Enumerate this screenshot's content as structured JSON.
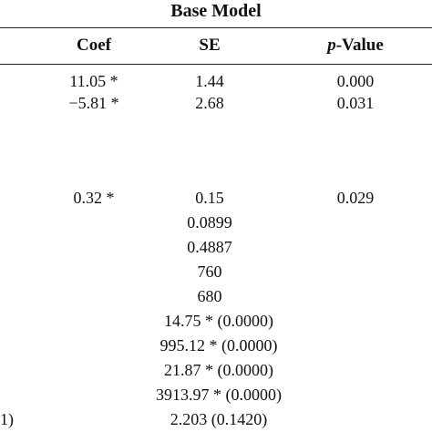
{
  "table": {
    "title": "Base Model",
    "headers": {
      "coef": "Coef",
      "se": "SE",
      "pvalue_italic": "p",
      "pvalue_rest": "-Value"
    },
    "rows": [
      {
        "coef": "11.05 *",
        "se": "1.44",
        "pvalue": "0.000"
      },
      {
        "coef": "−5.81 *",
        "se": "2.68",
        "pvalue": "0.031"
      },
      {
        "coef": "0.32 *",
        "se": "0.15",
        "pvalue": "0.029"
      }
    ],
    "se_only": [
      "0.0899",
      "0.4887",
      "760",
      "680"
    ],
    "tests": [
      "14.75 * (0.0000)",
      "995.12 * (0.0000)",
      "21.87 * (0.0000)",
      "3913.97 * (0.0000)",
      "2.203 (0.1420)"
    ],
    "stub_fragment": "1)"
  }
}
